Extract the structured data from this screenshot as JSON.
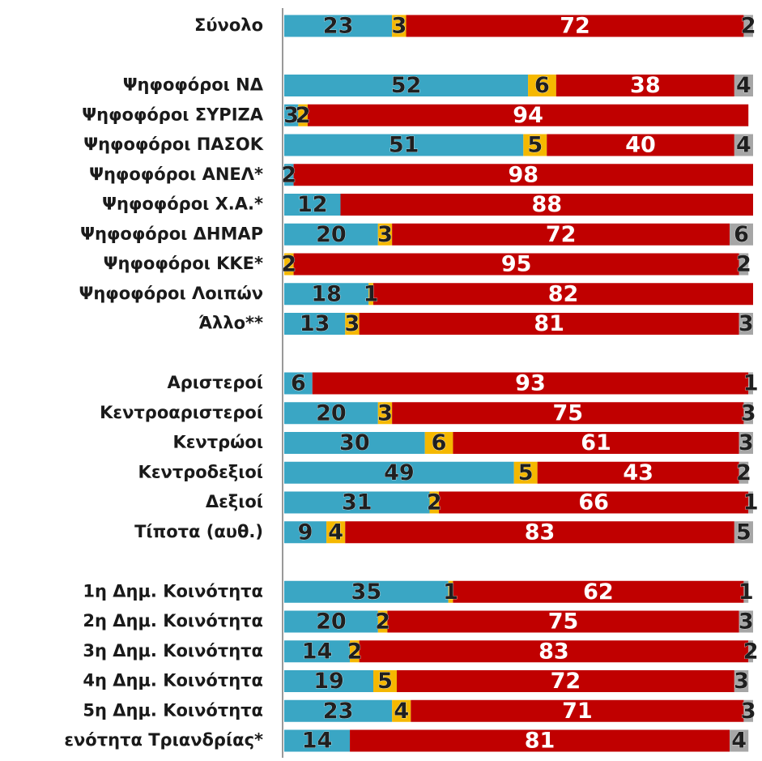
{
  "chart_data": {
    "type": "stacked-bar",
    "categories": [
      "Σύνολο",
      null,
      "Ψηφοφόροι ΝΔ",
      "Ψηφοφόροι ΣΥΡΙΖΑ",
      "Ψηφοφόροι ΠΑΣΟΚ",
      "Ψηφοφόροι ΑΝΕΛ*",
      "Ψηφοφόροι Χ.Α.*",
      "Ψηφοφόροι ΔΗΜΑΡ",
      "Ψηφοφόροι ΚΚΕ*",
      "Ψηφοφόροι Λοιπών",
      "Άλλο**",
      null,
      "Αριστεροί",
      "Κεντροαριστεροί",
      "Κεντρώοι",
      "Κεντροδεξιοί",
      "Δεξιοί",
      "Τίποτα (αυθ.)",
      null,
      "1η Δημ. Κοινότητα",
      "2η Δημ. Κοινότητα",
      "3η Δημ. Κοινότητα",
      "4η Δημ. Κοινότητα",
      "5η Δημ. Κοινότητα",
      "ενότητα Τριανδρίας*"
    ],
    "series": [
      {
        "color": "#3aa6c4",
        "label_color": "#1f1f1f",
        "values": [
          23,
          null,
          52,
          3,
          51,
          2,
          12,
          20,
          null,
          18,
          13,
          null,
          6,
          20,
          30,
          49,
          31,
          9,
          null,
          35,
          20,
          14,
          19,
          23,
          14
        ]
      },
      {
        "color": "#f5b800",
        "label_color": "#1f1f1f",
        "values": [
          3,
          null,
          6,
          2,
          5,
          null,
          null,
          3,
          2,
          1,
          3,
          null,
          null,
          3,
          6,
          5,
          2,
          4,
          null,
          1,
          2,
          2,
          5,
          4,
          null
        ]
      },
      {
        "color": "#c00000",
        "label_color": "#ffffff",
        "values": [
          72,
          null,
          38,
          94,
          40,
          98,
          88,
          72,
          95,
          82,
          81,
          null,
          93,
          75,
          61,
          43,
          66,
          83,
          null,
          62,
          75,
          83,
          72,
          71,
          81
        ]
      },
      {
        "color": "#a6a6a6",
        "label_color": "#1f1f1f",
        "values": [
          2,
          null,
          4,
          null,
          4,
          null,
          null,
          6,
          2,
          null,
          3,
          null,
          1,
          3,
          3,
          2,
          1,
          5,
          null,
          1,
          3,
          2,
          3,
          3,
          4
        ]
      }
    ],
    "xlim": [
      0,
      100
    ]
  }
}
